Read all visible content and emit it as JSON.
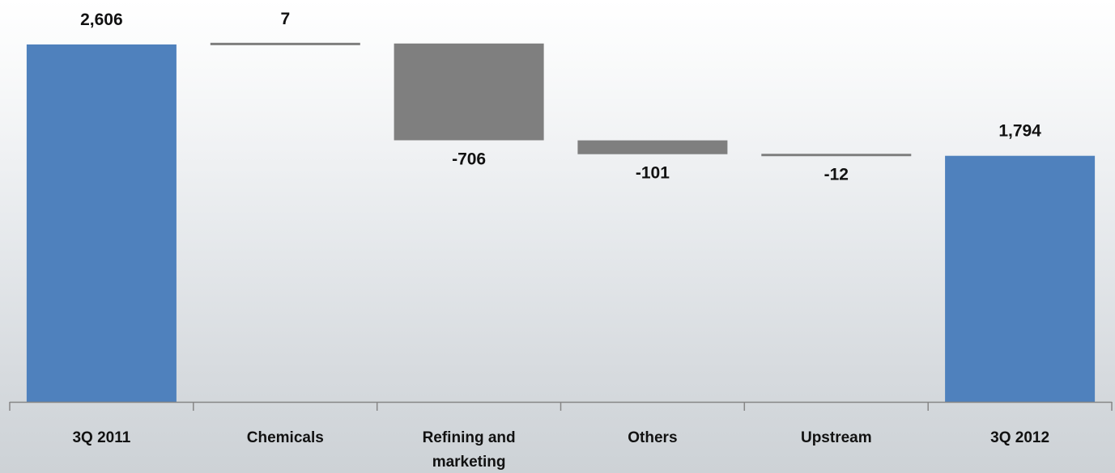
{
  "chart_data": {
    "type": "waterfall",
    "title": "",
    "xlabel": "",
    "ylabel": "",
    "ylim": [
      0,
      2700
    ],
    "grid": false,
    "legend": "none",
    "categories": [
      "3Q 2011",
      "Chemicals",
      "Refining and marketing",
      "Others",
      "Upstream",
      "3Q 2012"
    ],
    "category_lines": [
      [
        "3Q 2011"
      ],
      [
        "Chemicals"
      ],
      [
        "Refining and",
        "marketing"
      ],
      [
        "Others"
      ],
      [
        "Upstream"
      ],
      [
        "3Q 2012"
      ]
    ],
    "values": [
      2606,
      7,
      -706,
      -101,
      -12,
      1794
    ],
    "kinds": [
      "total",
      "increase",
      "decrease",
      "decrease",
      "decrease",
      "total"
    ],
    "data_labels": [
      "2,606",
      "7",
      "-706",
      "-101",
      "-12",
      "1,794"
    ],
    "colors": {
      "total": "#4f81bd",
      "change": "#7f7f7f",
      "axis": "#868686",
      "text": "#111111"
    }
  }
}
